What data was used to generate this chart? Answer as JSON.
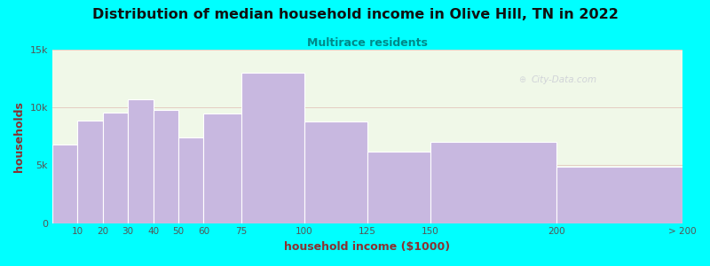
{
  "title": "Distribution of median household income in Olive Hill, TN in 2022",
  "subtitle": "Multirace residents",
  "xlabel": "household income ($1000)",
  "ylabel": "households",
  "background_outer": "#00FFFF",
  "background_inner": "#f0f8e8",
  "bar_color": "#c8b8e0",
  "bar_edge_color": "#ffffff",
  "title_color": "#111111",
  "subtitle_color": "#008888",
  "axis_label_color": "#8b3030",
  "tick_label_color": "#555555",
  "bin_edges": [
    0,
    10,
    20,
    30,
    40,
    50,
    60,
    75,
    100,
    125,
    150,
    200,
    250
  ],
  "bin_labels": [
    "10",
    "20",
    "30",
    "40",
    "50",
    "60",
    "75",
    "100",
    "125",
    "150",
    "200",
    "> 200"
  ],
  "tick_positions": [
    10,
    20,
    30,
    40,
    50,
    60,
    75,
    100,
    125,
    150,
    200,
    250
  ],
  "values": [
    6800,
    8900,
    9600,
    10700,
    9800,
    7400,
    9500,
    13000,
    8800,
    6200,
    7000,
    4900
  ],
  "ylim": [
    0,
    15000
  ],
  "yticks": [
    0,
    5000,
    10000,
    15000
  ],
  "ytick_labels": [
    "0",
    "5k",
    "10k",
    "15k"
  ],
  "watermark": "City-Data.com",
  "grid_color": "#d08080",
  "grid_alpha": 0.5,
  "grid_linewidth": 0.5
}
